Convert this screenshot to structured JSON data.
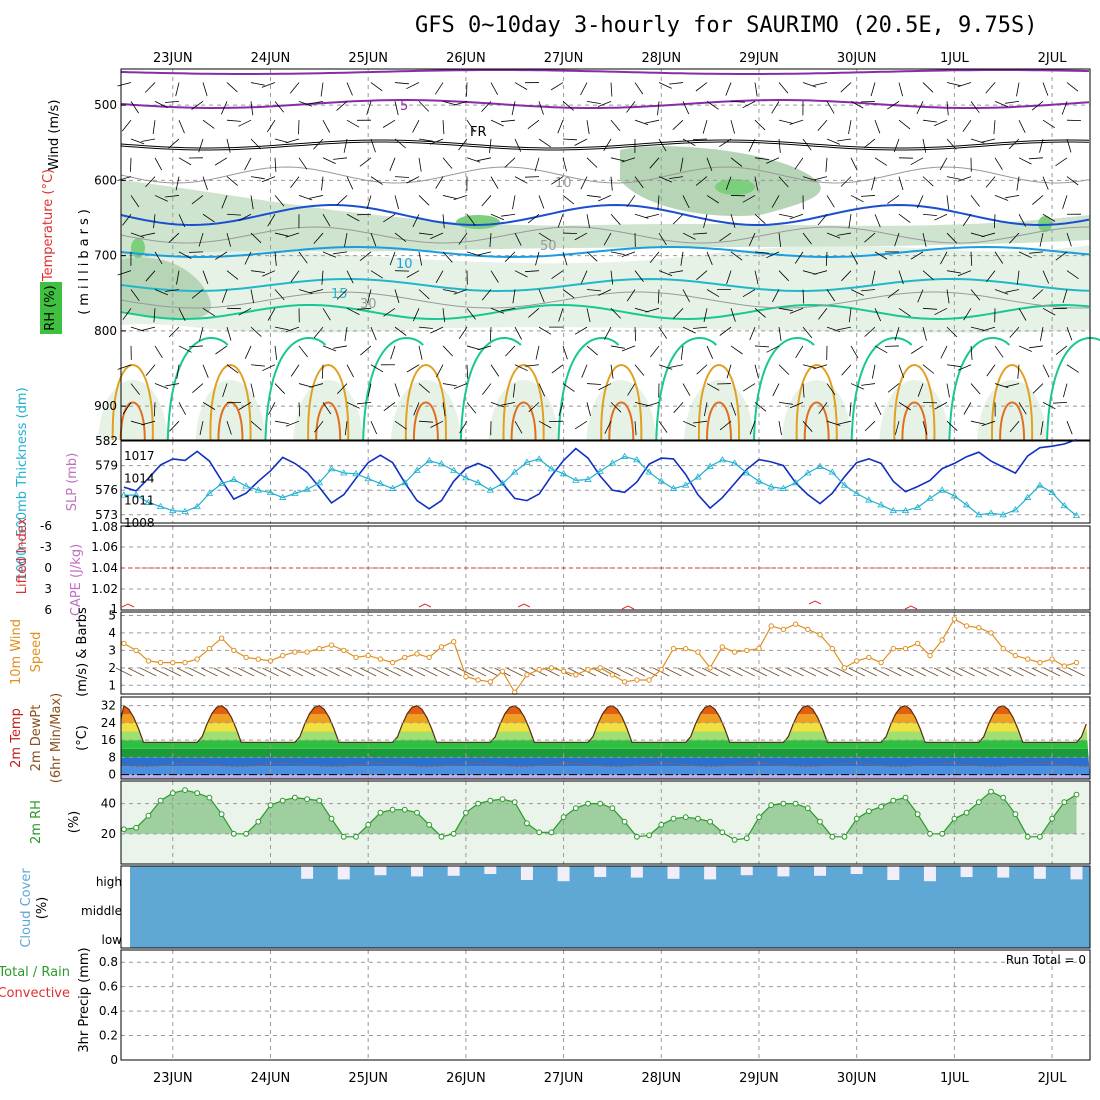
{
  "title": "GFS 0~10day 3-hourly for SAURIMO (20.5E, 9.75S)",
  "dates": [
    "23JUN",
    "24JUN",
    "25JUN",
    "26JUN",
    "27JUN",
    "28JUN",
    "29JUN",
    "30JUN",
    "1JUL",
    "2JUL"
  ],
  "colors": {
    "thickness": "#20b0d0",
    "slp": "#1030c0",
    "wind": "#e09020",
    "rh": "#2a9a2a",
    "cloud": "#5fa8d6",
    "lifted": "#e03030",
    "cape": "#c070c0"
  },
  "panels": {
    "upper": {
      "ylabel_wind": "Wind (m/s)",
      "ylabel_temp": "Temperature (°C)",
      "ylabel_rh": "RH (%)",
      "ylabel_pressure": "(millibars)",
      "yticks": [
        "500",
        "600",
        "700",
        "800",
        "900"
      ],
      "contour_labels": [
        "5",
        "FR",
        "10",
        "15",
        "30",
        "50",
        "10"
      ]
    },
    "thickness_slp": {
      "ylabel_left": "1000~500mb Thickness (dm)",
      "ylabel_right": "SLP (mb)",
      "left_ticks": [
        "582",
        "579",
        "576",
        "573"
      ],
      "right_ticks": [
        "1017",
        "1014",
        "1011",
        "1008"
      ]
    },
    "lifted_cape": {
      "ylabel_left": "Lifted Index",
      "ylabel_right": "CAPE (J/kg)",
      "left_ticks": [
        "-6",
        "-3",
        "0",
        "3",
        "6"
      ],
      "right_ticks": [
        "1.08",
        "1.06",
        "1.04",
        "1.02",
        "1"
      ]
    },
    "wind10m": {
      "ylabel_1": "10m Wind",
      "ylabel_2": "Speed",
      "ylabel_3": "(m/s) & Barbs",
      "ticks": [
        "5",
        "4",
        "3",
        "2",
        "1"
      ]
    },
    "temp2m": {
      "ylabel_1": "2m Temp",
      "ylabel_2": "2m DewPt",
      "ylabel_3": "(6hr Min/Max)",
      "unit": "(°C)",
      "ticks": [
        "32",
        "24",
        "16",
        "8",
        "0"
      ]
    },
    "rh2m": {
      "ylabel": "2m RH",
      "unit": "(%)",
      "ticks": [
        "40",
        "20"
      ]
    },
    "cloud": {
      "ylabel": "Cloud Cover",
      "unit": "(%)",
      "levels": [
        "high",
        "middle",
        "low"
      ]
    },
    "precip": {
      "ylabel_1": "Total / Rain",
      "ylabel_2": "Convective",
      "ylabel_3": "3hr Precip (mm)",
      "ticks": [
        "0.8",
        "0.6",
        "0.4",
        "0.2",
        "0"
      ],
      "run_total": "Run Total = 0"
    }
  },
  "chart_data": [
    {
      "type": "line",
      "title": "1000~500mb Thickness (dm)",
      "ylim": [
        572,
        582
      ],
      "x": [
        "22JUN 12",
        "22JUN 15",
        "22JUN 18",
        "22JUN 21",
        "23JUN 00",
        "23JUN 03",
        "23JUN 06",
        "23JUN 09",
        "23JUN 12",
        "23JUN 15",
        "23JUN 18",
        "23JUN 21",
        "24JUN 00",
        "24JUN 03",
        "24JUN 06",
        "24JUN 09",
        "24JUN 12",
        "24JUN 15",
        "24JUN 18",
        "24JUN 21",
        "25JUN 00",
        "25JUN 03",
        "25JUN 06",
        "25JUN 09",
        "25JUN 12",
        "25JUN 15",
        "25JUN 18",
        "25JUN 21",
        "26JUN 00",
        "26JUN 03",
        "26JUN 06",
        "26JUN 09",
        "26JUN 12",
        "26JUN 15",
        "26JUN 18",
        "26JUN 21",
        "27JUN 00",
        "27JUN 03",
        "27JUN 06",
        "27JUN 09",
        "27JUN 12",
        "27JUN 15",
        "27JUN 18",
        "27JUN 21",
        "28JUN 00",
        "28JUN 03",
        "28JUN 06",
        "28JUN 09",
        "28JUN 12",
        "28JUN 15",
        "28JUN 18",
        "28JUN 21",
        "29JUN 00",
        "29JUN 03",
        "29JUN 06",
        "29JUN 09",
        "29JUN 12",
        "29JUN 15",
        "29JUN 18",
        "29JUN 21",
        "30JUN 00",
        "30JUN 03",
        "30JUN 06",
        "30JUN 09",
        "30JUN 12",
        "30JUN 15",
        "30JUN 18",
        "30JUN 21",
        "1JUL 00",
        "1JUL 03",
        "1JUL 06",
        "1JUL 09",
        "1JUL 12",
        "1JUL 15",
        "1JUL 18",
        "1JUL 21",
        "2JUL 00",
        "2JUL 03",
        "2JUL 06"
      ],
      "series": [
        {
          "name": "Thickness",
          "values": [
            575.4,
            575.4,
            574.5,
            574.0,
            573.5,
            573.4,
            574.0,
            575.6,
            576.8,
            577.3,
            576.5,
            576.0,
            575.7,
            575.1,
            575.6,
            576.1,
            576.9,
            578.6,
            578.1,
            578.0,
            577.4,
            576.8,
            576.2,
            576.9,
            578.4,
            579.6,
            579.2,
            578.4,
            577.5,
            576.9,
            576.0,
            576.8,
            578.2,
            579.4,
            579.8,
            578.6,
            578.0,
            577.2,
            577.3,
            578.3,
            579.3,
            580.1,
            579.7,
            578.2,
            577.1,
            576.2,
            576.6,
            577.6,
            578.9,
            579.7,
            579.3,
            578.1,
            577.1,
            576.4,
            576.2,
            576.9,
            578.1,
            578.9,
            578.2,
            576.6,
            575.6,
            574.8,
            574.2,
            573.5,
            573.5,
            573.9,
            575.0,
            576.0,
            575.3,
            574.2,
            573.0,
            573.2,
            573.0,
            573.6,
            575.1,
            576.6,
            575.7,
            574.1,
            572.9
          ]
        }
      ]
    },
    {
      "type": "line",
      "title": "SLP (mb)",
      "ylim": [
        1008,
        1019
      ],
      "x": [
        "22JUN 12",
        "22JUN 15",
        "22JUN 18",
        "22JUN 21",
        "23JUN 00",
        "23JUN 03",
        "23JUN 06",
        "23JUN 09",
        "23JUN 12",
        "23JUN 15",
        "23JUN 18",
        "23JUN 21",
        "24JUN 00",
        "24JUN 03",
        "24JUN 06",
        "24JUN 09",
        "24JUN 12",
        "24JUN 15",
        "24JUN 18",
        "24JUN 21",
        "25JUN 00",
        "25JUN 03",
        "25JUN 06",
        "25JUN 09",
        "25JUN 12",
        "25JUN 15",
        "25JUN 18",
        "25JUN 21",
        "26JUN 00",
        "26JUN 03",
        "26JUN 06",
        "26JUN 09",
        "26JUN 12",
        "26JUN 15",
        "26JUN 18",
        "26JUN 21",
        "27JUN 00",
        "27JUN 03",
        "27JUN 06",
        "27JUN 09",
        "27JUN 12",
        "27JUN 15",
        "27JUN 18",
        "27JUN 21",
        "28JUN 00",
        "28JUN 03",
        "28JUN 06",
        "28JUN 09",
        "28JUN 12",
        "28JUN 15",
        "28JUN 18",
        "28JUN 21",
        "29JUN 00",
        "29JUN 03",
        "29JUN 06",
        "29JUN 09",
        "29JUN 12",
        "29JUN 15",
        "29JUN 18",
        "29JUN 21",
        "30JUN 00",
        "30JUN 03",
        "30JUN 06",
        "30JUN 09",
        "30JUN 12",
        "30JUN 15",
        "30JUN 18",
        "30JUN 21",
        "1JUL 00",
        "1JUL 03",
        "1JUL 06",
        "1JUL 09",
        "1JUL 12",
        "1JUL 15",
        "1JUL 18",
        "1JUL 21",
        "2JUL 00",
        "2JUL 03",
        "2JUL 06"
      ],
      "series": [
        {
          "name": "SLP",
          "values": [
            1012.8,
            1012.3,
            1014.0,
            1015.8,
            1016.6,
            1016.4,
            1017.6,
            1016.3,
            1013.7,
            1011.2,
            1012.0,
            1013.6,
            1015.0,
            1016.8,
            1016.0,
            1014.8,
            1012.8,
            1010.7,
            1011.8,
            1014.0,
            1016.1,
            1017.1,
            1016.1,
            1013.4,
            1011.0,
            1009.9,
            1011.0,
            1013.6,
            1015.3,
            1016.0,
            1015.3,
            1013.3,
            1011.3,
            1011.0,
            1011.9,
            1014.3,
            1016.4,
            1018.0,
            1016.7,
            1014.3,
            1012.4,
            1012.1,
            1013.5,
            1015.9,
            1016.7,
            1016.6,
            1014.5,
            1011.8,
            1010.0,
            1011.4,
            1013.3,
            1015.2,
            1016.5,
            1016.2,
            1015.7,
            1013.4,
            1011.8,
            1010.6,
            1012.0,
            1014.2,
            1016.1,
            1016.6,
            1016.0,
            1013.6,
            1012.2,
            1012.9,
            1013.7,
            1015.3,
            1016.0,
            1016.9,
            1017.5,
            1016.3,
            1015.5,
            1014.7,
            1017.0,
            1018.1,
            1018.3,
            1018.6,
            1019.2
          ]
        }
      ]
    },
    {
      "type": "line",
      "title": "10m Wind Speed (m/s)",
      "ylim": [
        0.5,
        5.2
      ],
      "x": [
        "22JUN 12",
        "22JUN 15",
        "22JUN 18",
        "22JUN 21",
        "23JUN 00",
        "23JUN 03",
        "23JUN 06",
        "23JUN 09",
        "23JUN 12",
        "23JUN 15",
        "23JUN 18",
        "23JUN 21",
        "24JUN 00",
        "24JUN 03",
        "24JUN 06",
        "24JUN 09",
        "24JUN 12",
        "24JUN 15",
        "24JUN 18",
        "24JUN 21",
        "25JUN 00",
        "25JUN 03",
        "25JUN 06",
        "25JUN 09",
        "25JUN 12",
        "25JUN 15",
        "25JUN 18",
        "25JUN 21",
        "26JUN 00",
        "26JUN 03",
        "26JUN 06",
        "26JUN 09",
        "26JUN 12",
        "26JUN 15",
        "26JUN 18",
        "26JUN 21",
        "27JUN 00",
        "27JUN 03",
        "27JUN 06",
        "27JUN 09",
        "27JUN 12",
        "27JUN 15",
        "27JUN 18",
        "27JUN 21",
        "28JUN 00",
        "28JUN 03",
        "28JUN 06",
        "28JUN 09",
        "28JUN 12",
        "28JUN 15",
        "28JUN 18",
        "28JUN 21",
        "29JUN 00",
        "29JUN 03",
        "29JUN 06",
        "29JUN 09",
        "29JUN 12",
        "29JUN 15",
        "29JUN 18",
        "29JUN 21",
        "30JUN 00",
        "30JUN 03",
        "30JUN 06",
        "30JUN 09",
        "30JUN 12",
        "30JUN 15",
        "30JUN 18",
        "30JUN 21",
        "1JUL 00",
        "1JUL 03",
        "1JUL 06",
        "1JUL 09",
        "1JUL 12",
        "1JUL 15",
        "1JUL 18",
        "1JUL 21",
        "2JUL 00",
        "2JUL 03",
        "2JUL 06"
      ],
      "series": [
        {
          "name": "Speed",
          "values": [
            3.4,
            3.0,
            2.4,
            2.3,
            2.3,
            2.3,
            2.5,
            3.1,
            3.7,
            3.0,
            2.6,
            2.5,
            2.4,
            2.7,
            2.9,
            2.9,
            3.1,
            3.3,
            3.0,
            2.6,
            2.7,
            2.5,
            2.3,
            2.6,
            2.8,
            2.6,
            3.2,
            3.5,
            1.5,
            1.3,
            1.2,
            1.8,
            0.6,
            1.6,
            1.9,
            2.0,
            1.8,
            1.6,
            1.9,
            2.0,
            1.6,
            1.2,
            1.3,
            1.3,
            1.9,
            3.1,
            3.1,
            2.9,
            2.0,
            3.2,
            2.9,
            3.0,
            3.1,
            4.4,
            4.2,
            4.5,
            4.2,
            3.9,
            3.1,
            2.0,
            2.4,
            2.6,
            2.3,
            3.1,
            3.1,
            3.4,
            2.7,
            3.6,
            4.8,
            4.4,
            4.3,
            4.0,
            3.1,
            2.7,
            2.5,
            2.3,
            2.5,
            2.1,
            2.3
          ]
        }
      ]
    },
    {
      "type": "area",
      "title": "2m RH (%)",
      "ylim": [
        0,
        55
      ],
      "x": [
        "22JUN 12",
        "22JUN 15",
        "22JUN 18",
        "22JUN 21",
        "23JUN 00",
        "23JUN 03",
        "23JUN 06",
        "23JUN 09",
        "23JUN 12",
        "23JUN 15",
        "23JUN 18",
        "23JUN 21",
        "24JUN 00",
        "24JUN 03",
        "24JUN 06",
        "24JUN 09",
        "24JUN 12",
        "24JUN 15",
        "24JUN 18",
        "24JUN 21",
        "25JUN 00",
        "25JUN 03",
        "25JUN 06",
        "25JUN 09",
        "25JUN 12",
        "25JUN 15",
        "25JUN 18",
        "25JUN 21",
        "26JUN 00",
        "26JUN 03",
        "26JUN 06",
        "26JUN 09",
        "26JUN 12",
        "26JUN 15",
        "26JUN 18",
        "26JUN 21",
        "27JUN 00",
        "27JUN 03",
        "27JUN 06",
        "27JUN 09",
        "27JUN 12",
        "27JUN 15",
        "27JUN 18",
        "27JUN 21",
        "28JUN 00",
        "28JUN 03",
        "28JUN 06",
        "28JUN 09",
        "28JUN 12",
        "28JUN 15",
        "28JUN 18",
        "28JUN 21",
        "29JUN 00",
        "29JUN 03",
        "29JUN 06",
        "29JUN 09",
        "29JUN 12",
        "29JUN 15",
        "29JUN 18",
        "29JUN 21",
        "30JUN 00",
        "30JUN 03",
        "30JUN 06",
        "30JUN 09",
        "30JUN 12",
        "30JUN 15",
        "30JUN 18",
        "30JUN 21",
        "1JUL 00",
        "1JUL 03",
        "1JUL 06",
        "1JUL 09",
        "1JUL 12",
        "1JUL 15",
        "1JUL 18",
        "1JUL 21",
        "2JUL 00",
        "2JUL 03",
        "2JUL 06"
      ],
      "series": [
        {
          "name": "RH",
          "values": [
            23,
            24,
            32,
            42,
            47,
            49,
            47,
            44,
            33,
            20,
            20,
            28,
            39,
            42,
            44,
            43,
            42,
            30,
            18,
            18,
            26,
            34,
            36,
            36,
            34,
            26,
            18,
            20,
            34,
            40,
            42,
            43,
            41,
            27,
            21,
            21,
            31,
            37,
            40,
            40,
            37,
            28,
            18,
            19,
            26,
            30,
            31,
            30,
            28,
            21,
            16,
            17,
            31,
            39,
            40,
            40,
            37,
            28,
            18,
            18,
            30,
            35,
            38,
            42,
            44,
            33,
            20,
            20,
            30,
            34,
            41,
            48,
            44,
            33,
            18,
            18,
            30,
            41,
            46
          ]
        }
      ]
    },
    {
      "type": "bar",
      "title": "3hr Precip (mm)",
      "ylim": [
        0,
        0.9
      ],
      "values": [
        0
      ]
    }
  ]
}
